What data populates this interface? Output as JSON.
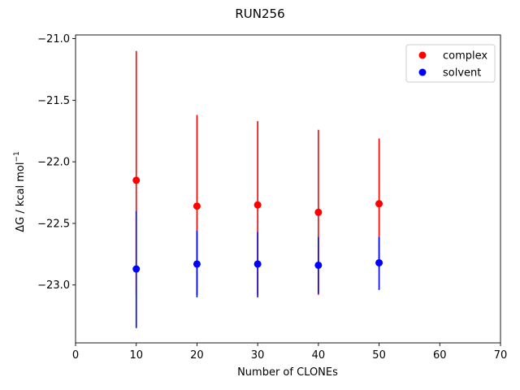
{
  "chart_data": {
    "type": "scatter",
    "title": "RUN256",
    "xlabel": "Number of CLONEs",
    "ylabel": "ΔG / kcal mol",
    "ylabel_superscript": "−1",
    "xlim": [
      0,
      70
    ],
    "ylim": [
      -23.47,
      -20.97
    ],
    "xticks": [
      0,
      10,
      20,
      30,
      40,
      50,
      60,
      70
    ],
    "xtick_labels": [
      "0",
      "10",
      "20",
      "30",
      "40",
      "50",
      "60",
      "70"
    ],
    "yticks": [
      -21.0,
      -21.5,
      -22.0,
      -22.5,
      -23.0
    ],
    "ytick_labels": [
      "−21.0",
      "−21.5",
      "−22.0",
      "−22.5",
      "−23.0"
    ],
    "grid": false,
    "legend_position": "top-right",
    "series": [
      {
        "name": "complex",
        "color": "#ff0000",
        "points": [
          {
            "x": 10,
            "y": -22.15,
            "err_low": -23.08,
            "err_high": -21.1
          },
          {
            "x": 20,
            "y": -22.36,
            "err_low": -23.08,
            "err_high": -21.62
          },
          {
            "x": 30,
            "y": -22.35,
            "err_low": -23.08,
            "err_high": -21.67
          },
          {
            "x": 40,
            "y": -22.41,
            "err_low": -23.08,
            "err_high": -21.74
          },
          {
            "x": 50,
            "y": -22.34,
            "err_low": -22.86,
            "err_high": -21.81
          }
        ]
      },
      {
        "name": "solvent",
        "color": "#0000ff",
        "points": [
          {
            "x": 10,
            "y": -22.87,
            "err_low": -23.35,
            "err_high": -22.4
          },
          {
            "x": 20,
            "y": -22.83,
            "err_low": -23.1,
            "err_high": -22.56
          },
          {
            "x": 30,
            "y": -22.83,
            "err_low": -23.1,
            "err_high": -22.57
          },
          {
            "x": 40,
            "y": -22.84,
            "err_low": -23.07,
            "err_high": -22.61
          },
          {
            "x": 50,
            "y": -22.82,
            "err_low": -23.04,
            "err_high": -22.61
          }
        ]
      }
    ]
  }
}
